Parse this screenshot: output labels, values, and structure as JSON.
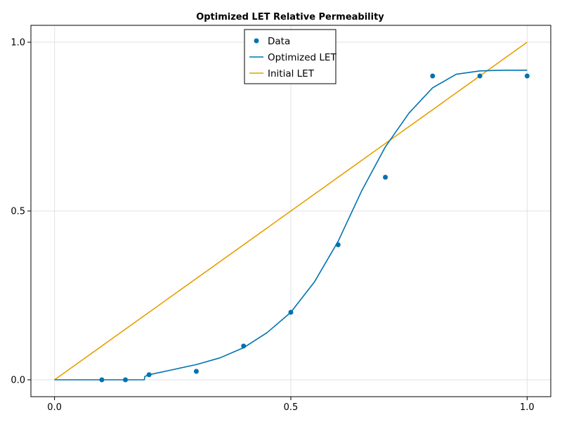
{
  "chart_data": {
    "type": "line",
    "title": "Optimized LET Relative Permeability",
    "xlabel": "",
    "ylabel": "",
    "xlim": [
      -0.05,
      1.05
    ],
    "ylim": [
      -0.05,
      1.05
    ],
    "x_ticks": [
      0.0,
      0.5,
      1.0
    ],
    "x_tick_labels": [
      "0.0",
      "0.5",
      "1.0"
    ],
    "y_ticks": [
      0.0,
      0.5,
      1.0
    ],
    "y_tick_labels": [
      "0.0",
      "0.5",
      "1.0"
    ],
    "grid": true,
    "legend_position": "top-center",
    "legend": [
      "Data",
      "Optimized LET",
      "Initial LET"
    ],
    "colors": {
      "data": "#0072b2",
      "optimized": "#0072b2",
      "initial": "#e69f00"
    },
    "series": [
      {
        "name": "Data",
        "kind": "scatter",
        "x": [
          0.1,
          0.15,
          0.2,
          0.3,
          0.4,
          0.5,
          0.6,
          0.7,
          0.8,
          0.9,
          1.0
        ],
        "y": [
          0.0,
          0.0,
          0.015,
          0.025,
          0.1,
          0.2,
          0.4,
          0.6,
          0.9,
          0.9,
          0.9
        ]
      },
      {
        "name": "Optimized LET",
        "kind": "line",
        "x": [
          0.0,
          0.1,
          0.15,
          0.19,
          0.191,
          0.2,
          0.25,
          0.3,
          0.35,
          0.4,
          0.45,
          0.5,
          0.55,
          0.6,
          0.65,
          0.7,
          0.725,
          0.75,
          0.8,
          0.85,
          0.9,
          0.95,
          1.0
        ],
        "y": [
          0.0,
          0.0,
          0.0,
          0.0,
          0.01,
          0.015,
          0.03,
          0.045,
          0.065,
          0.095,
          0.14,
          0.2,
          0.29,
          0.41,
          0.56,
          0.69,
          0.74,
          0.79,
          0.865,
          0.905,
          0.915,
          0.917,
          0.917
        ]
      },
      {
        "name": "Initial LET",
        "kind": "line",
        "x": [
          0.0,
          1.0
        ],
        "y": [
          0.0,
          1.0
        ]
      }
    ]
  }
}
